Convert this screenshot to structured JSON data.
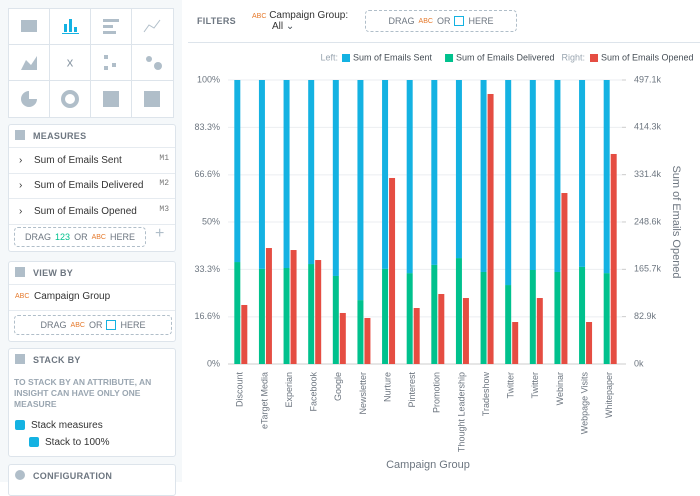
{
  "ui": {
    "measures": {
      "title": "MEASURES",
      "items": [
        {
          "label": "Sum of Emails Sent",
          "code": "M1"
        },
        {
          "label": "Sum of Emails Delivered",
          "code": "M2"
        },
        {
          "label": "Sum of Emails Opened",
          "code": "M3"
        }
      ],
      "drop": [
        "DRAG",
        "123",
        "OR",
        "ABC",
        "HERE"
      ]
    },
    "view_by": {
      "title": "VIEW BY",
      "badge": "ABC",
      "item": "Campaign Group",
      "drop": [
        "DRAG",
        "ABC",
        "OR",
        "HERE"
      ]
    },
    "stack_by": {
      "title": "STACK BY",
      "note": "TO STACK BY AN ATTRIBUTE, AN INSIGHT CAN HAVE ONLY ONE MEASURE",
      "checks": [
        "Stack measures",
        "Stack to 100%"
      ]
    },
    "configuration": {
      "title": "CONFIGURATION"
    },
    "filters": {
      "title": "FILTERS",
      "badge": "ABC",
      "name": "Campaign Group:",
      "value": "All",
      "drop": [
        "DRAG",
        "ABC",
        "OR",
        "HERE"
      ]
    }
  },
  "chart_data": {
    "type": "bar",
    "x_label": "Campaign Group",
    "y2_label": "Sum of Emails Opened",
    "legend_left": "Left:",
    "legend_right": "Right:",
    "categories": [
      "Discount",
      "eTarget Media",
      "Experian",
      "Facebook",
      "Google",
      "Newsletter",
      "Nurture",
      "Pinterest",
      "Promotion",
      "Thought Leadership",
      "Tradeshow",
      "Twitter",
      "Twitter",
      "Webinar",
      "Webpage Visits",
      "Whitepaper"
    ],
    "series": [
      {
        "name": "Sum of Emails Sent",
        "color": "#14b2e2",
        "values": [
          64.1,
          66.5,
          66.2,
          64.8,
          69.0,
          77.5,
          66.5,
          68.0,
          65.1,
          62.7,
          67.6,
          72.2,
          66.9,
          67.6,
          65.8,
          68.0
        ]
      },
      {
        "name": "Sum of Emails Delivered",
        "color": "#00c18d",
        "values": [
          35.9,
          33.5,
          33.8,
          35.2,
          31.0,
          22.5,
          33.5,
          32.0,
          34.9,
          37.3,
          32.4,
          27.8,
          33.1,
          32.4,
          34.2,
          32.0
        ]
      },
      {
        "name": "Sum of Emails Opened",
        "color": "#e54d42",
        "axis": "y2",
        "values": [
          103300,
          203000,
          199500,
          182000,
          89300,
          80500,
          325600,
          98000,
          122500,
          115500,
          472600,
          73500,
          115500,
          299300,
          73500,
          367600
        ]
      }
    ],
    "ylim": [
      0,
      100
    ],
    "yticks": [
      {
        "value": 0,
        "label": "0%"
      },
      {
        "value": 16.6,
        "label": "16.6%"
      },
      {
        "value": 33.3,
        "label": "33.3%"
      },
      {
        "value": 50,
        "label": "50%"
      },
      {
        "value": 66.6,
        "label": "66.6%"
      },
      {
        "value": 83.3,
        "label": "83.3%"
      },
      {
        "value": 100,
        "label": "100%"
      }
    ],
    "y2lim": [
      0,
      497100
    ],
    "y2ticks": [
      {
        "value": 0,
        "label": "0k"
      },
      {
        "value": 82900,
        "label": "82.9k"
      },
      {
        "value": 165700,
        "label": "165.7k"
      },
      {
        "value": 248600,
        "label": "248.6k"
      },
      {
        "value": 331400,
        "label": "331.4k"
      },
      {
        "value": 414300,
        "label": "414.3k"
      },
      {
        "value": 497100,
        "label": "497.1k"
      }
    ],
    "grid": true
  }
}
